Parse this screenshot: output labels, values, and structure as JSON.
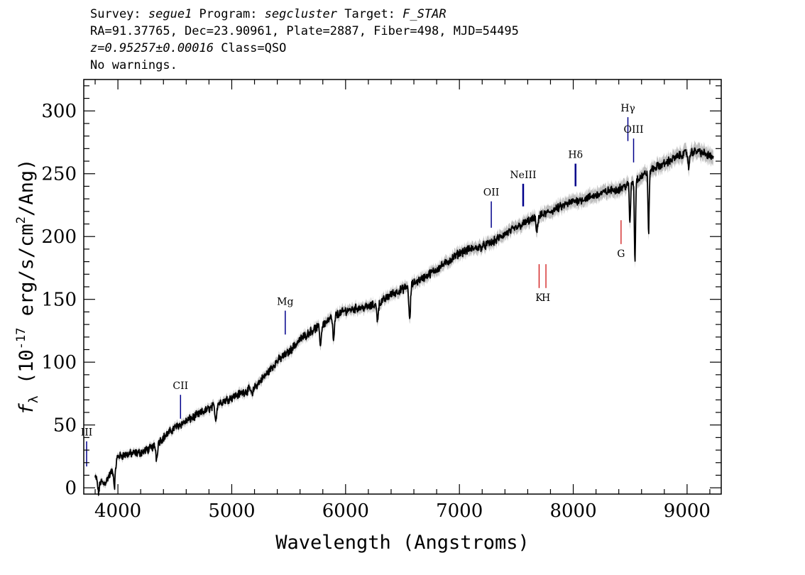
{
  "header": {
    "line1": {
      "survey_label": "Survey: ",
      "survey": "segue1",
      "program_label": " Program: ",
      "program": "segcluster",
      "target_label": " Target: ",
      "target": "F_STAR"
    },
    "line2": "RA=91.37765, Dec=23.90961, Plate=2887, Fiber=498, MJD=54495",
    "line3": {
      "z": "z=0.95257±0.00016",
      "class": " Class=QSO"
    },
    "line4": "No warnings."
  },
  "chart_data": {
    "type": "line",
    "xlabel": "Wavelength (Angstroms)",
    "ylabel": "f_λ (10^-17 erg/s/cm^2/Ang)",
    "xlim": [
      3700,
      9300
    ],
    "ylim": [
      -5,
      325
    ],
    "x_ticks": [
      4000,
      5000,
      6000,
      7000,
      8000,
      9000
    ],
    "y_ticks": [
      0,
      50,
      100,
      150,
      200,
      250,
      300
    ],
    "grid": false,
    "colors": {
      "flux": "#000000",
      "error_band": "#bdbdbd",
      "emission": "#00008b",
      "absorption": "#cc0000"
    },
    "continuum": [
      [
        3800,
        8
      ],
      [
        3880,
        3
      ],
      [
        3960,
        15
      ],
      [
        4000,
        25
      ],
      [
        4100,
        27
      ],
      [
        4200,
        28
      ],
      [
        4300,
        32
      ],
      [
        4400,
        40
      ],
      [
        4500,
        48
      ],
      [
        4600,
        53
      ],
      [
        4700,
        58
      ],
      [
        4800,
        63
      ],
      [
        4900,
        68
      ],
      [
        5000,
        72
      ],
      [
        5100,
        76
      ],
      [
        5200,
        80
      ],
      [
        5300,
        90
      ],
      [
        5400,
        101
      ],
      [
        5500,
        108
      ],
      [
        5600,
        118
      ],
      [
        5700,
        125
      ],
      [
        5800,
        130
      ],
      [
        5900,
        137
      ],
      [
        6000,
        141
      ],
      [
        6100,
        143
      ],
      [
        6200,
        144
      ],
      [
        6300,
        147
      ],
      [
        6400,
        154
      ],
      [
        6500,
        158
      ],
      [
        6600,
        163
      ],
      [
        6700,
        168
      ],
      [
        6800,
        174
      ],
      [
        6900,
        180
      ],
      [
        7000,
        187
      ],
      [
        7100,
        190
      ],
      [
        7200,
        192
      ],
      [
        7300,
        196
      ],
      [
        7400,
        202
      ],
      [
        7500,
        207
      ],
      [
        7600,
        212
      ],
      [
        7700,
        216
      ],
      [
        7800,
        220
      ],
      [
        7900,
        224
      ],
      [
        8000,
        228
      ],
      [
        8100,
        230
      ],
      [
        8200,
        233
      ],
      [
        8300,
        236
      ],
      [
        8400,
        238
      ],
      [
        8500,
        242
      ],
      [
        8600,
        248
      ],
      [
        8700,
        254
      ],
      [
        8800,
        258
      ],
      [
        8900,
        263
      ],
      [
        9000,
        267
      ],
      [
        9100,
        268
      ],
      [
        9200,
        264
      ],
      [
        9230,
        262
      ]
    ],
    "absorption_dips": [
      {
        "x": 3830,
        "depth": 10
      },
      {
        "x": 3970,
        "depth": 16
      },
      {
        "x": 4340,
        "depth": 12
      },
      {
        "x": 4860,
        "depth": 12
      },
      {
        "x": 5180,
        "depth": 6
      },
      {
        "x": 5780,
        "depth": 15
      },
      {
        "x": 5895,
        "depth": 20
      },
      {
        "x": 6280,
        "depth": 12
      },
      {
        "x": 6563,
        "depth": 28
      },
      {
        "x": 7680,
        "depth": 12
      },
      {
        "x": 8498,
        "depth": 32
      },
      {
        "x": 8542,
        "depth": 65
      },
      {
        "x": 8662,
        "depth": 50
      },
      {
        "x": 9015,
        "depth": 12
      }
    ],
    "emission_lines": [
      {
        "label": "III",
        "x": 3725,
        "y_top": 37,
        "y_bottom": 17
      },
      {
        "label": "CII",
        "x": 4550,
        "y_top": 74,
        "y_bottom": 55
      },
      {
        "label": "Mg",
        "x": 5470,
        "y_top": 141,
        "y_bottom": 122
      },
      {
        "label": "OII",
        "x": 7280,
        "y_top": 228,
        "y_bottom": 207
      },
      {
        "label": "NeIII",
        "x": 7560,
        "y_top": 242,
        "y_bottom": 224
      },
      {
        "label": "Hδ",
        "x": 8020,
        "y_top": 258,
        "y_bottom": 240
      },
      {
        "label": "Hγ",
        "x": 8480,
        "y_top": 295,
        "y_bottom": 276
      },
      {
        "label": "OIII",
        "x": 8530,
        "y_top": 278,
        "y_bottom": 259
      }
    ],
    "absorption_lines": [
      {
        "label": "K",
        "x": 7700,
        "y_top": 178,
        "y_bottom": 159
      },
      {
        "label": "H",
        "x": 7760,
        "y_top": 178,
        "y_bottom": 159
      },
      {
        "label": "G",
        "x": 8420,
        "y_top": 213,
        "y_bottom": 194
      }
    ]
  }
}
